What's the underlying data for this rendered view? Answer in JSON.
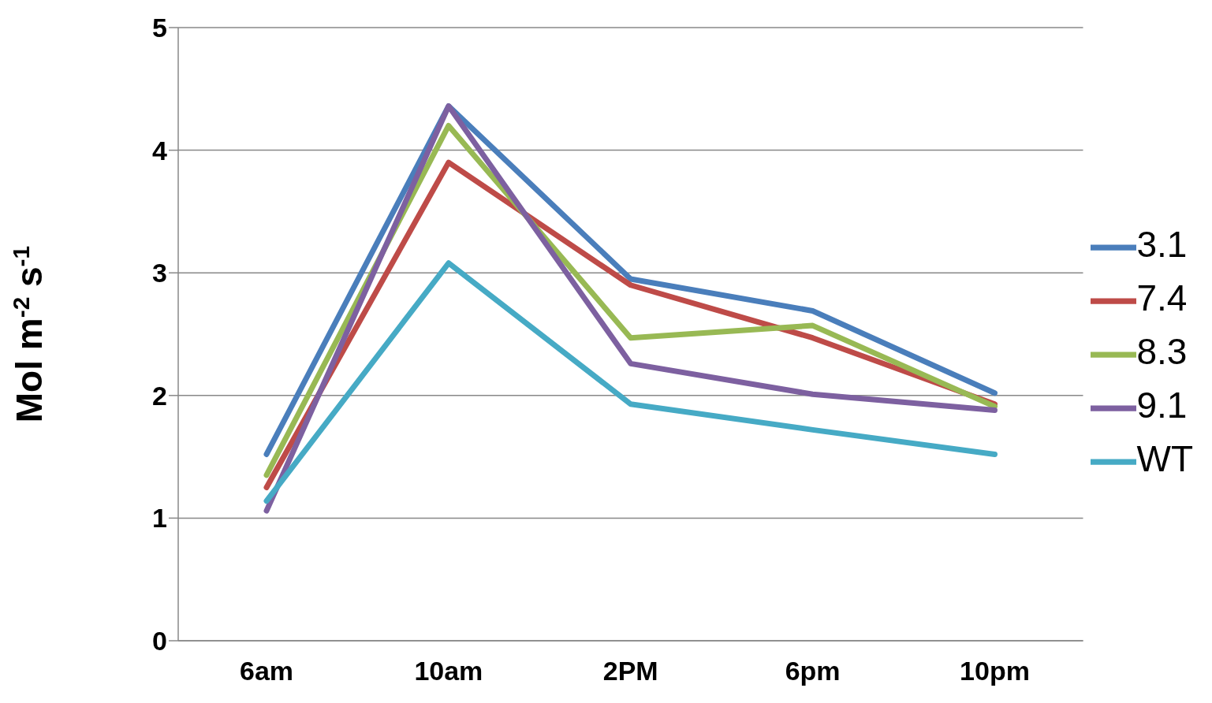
{
  "chart_data": {
    "type": "line",
    "ylabel": "Mol m$^{-2}$ s$^{-1}$",
    "categories": [
      "6am",
      "10am",
      "2PM",
      "6pm",
      "10pm"
    ],
    "series": [
      {
        "name": "3.1",
        "color": "#4a7ebb",
        "values": [
          1.52,
          4.36,
          2.95,
          2.69,
          2.02
        ]
      },
      {
        "name": "7.4",
        "color": "#be4b48",
        "values": [
          1.25,
          3.9,
          2.9,
          2.47,
          1.93
        ]
      },
      {
        "name": "8.3",
        "color": "#98b954",
        "values": [
          1.35,
          4.2,
          2.47,
          2.57,
          1.91
        ]
      },
      {
        "name": "9.1",
        "color": "#7d60a0",
        "values": [
          1.06,
          4.36,
          2.26,
          2.01,
          1.88
        ]
      },
      {
        "name": "WT",
        "color": "#46aac5",
        "values": [
          1.14,
          3.08,
          1.93,
          1.72,
          1.52
        ]
      }
    ],
    "ylim": [
      0,
      5
    ],
    "yticks": [
      0,
      1,
      2,
      3,
      4,
      5
    ],
    "grid": "y",
    "legend": "right",
    "marker": "none",
    "line_style": "solid"
  }
}
